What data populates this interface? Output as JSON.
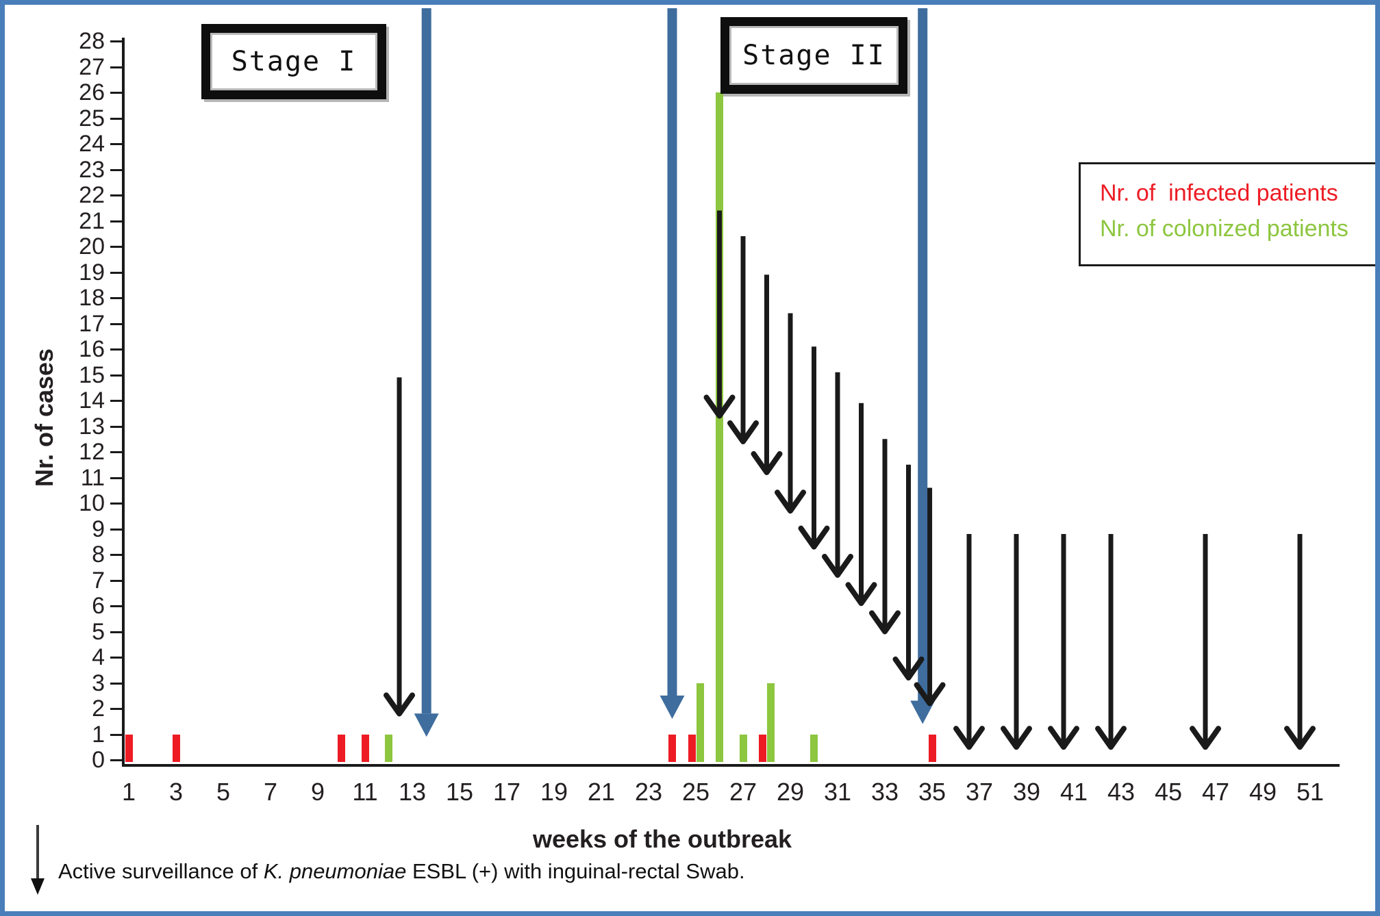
{
  "figure": {
    "y_axis_title": "Nr. of cases",
    "x_axis_title": "weeks of the outbreak",
    "y_ticks": [
      0,
      1,
      2,
      3,
      4,
      5,
      6,
      7,
      8,
      9,
      10,
      11,
      12,
      13,
      14,
      15,
      16,
      17,
      18,
      19,
      20,
      21,
      22,
      23,
      24,
      25,
      26,
      27,
      28
    ],
    "x_ticks": [
      1,
      3,
      5,
      7,
      9,
      11,
      13,
      15,
      17,
      19,
      21,
      23,
      25,
      27,
      29,
      31,
      33,
      35,
      37,
      39,
      41,
      43,
      45,
      47,
      49,
      51
    ]
  },
  "stage_labels": {
    "stage1": "Stage I",
    "stage2": "Stage II"
  },
  "legend": {
    "items": [
      {
        "label": "Nr. of  infected patients",
        "color": "#ED1C24"
      },
      {
        "label": "Nr. of colonized patients",
        "color": "#8DC63F"
      }
    ]
  },
  "footnote": {
    "prefix": "Active surveillance of ",
    "italic": "K. pneumoniae",
    "suffix": " ESBL (+) with inguinal-rectal Swab."
  },
  "colors": {
    "infected": "#ED1C24",
    "colonized": "#8DC63F",
    "blue_arrow": "#3E6D9E",
    "frame": "#4A7EBB",
    "black_arrow": "#1a1a1a"
  },
  "chart_data": {
    "type": "bar",
    "title": "",
    "xlabel": "weeks of the outbreak",
    "ylabel": "Nr. of cases",
    "xlim": [
      0,
      52
    ],
    "ylim": [
      0,
      28
    ],
    "grid": false,
    "legend_position": "upper right",
    "series": [
      {
        "name": "Nr. of infected patients",
        "color": "#ED1C24",
        "points": [
          {
            "week": 1,
            "cases": 1
          },
          {
            "week": 3,
            "cases": 1
          },
          {
            "week": 10,
            "cases": 1
          },
          {
            "week": 11,
            "cases": 1
          },
          {
            "week": 24,
            "cases": 1
          },
          {
            "week": 25,
            "cases": 1
          },
          {
            "week": 28,
            "cases": 1
          },
          {
            "week": 35,
            "cases": 1
          }
        ]
      },
      {
        "name": "Nr. of colonized patients",
        "color": "#8DC63F",
        "points": [
          {
            "week": 12,
            "cases": 1
          },
          {
            "week": 25,
            "cases": 3
          },
          {
            "week": 26,
            "cases": 26
          },
          {
            "week": 27,
            "cases": 1
          },
          {
            "week": 28,
            "cases": 3
          },
          {
            "week": 30,
            "cases": 1
          }
        ]
      }
    ],
    "stage_divider_arrows_blue": [
      {
        "week": 13.6,
        "tip_value": 0.9
      },
      {
        "week": 24.0,
        "tip_value": 1.6
      },
      {
        "week": 34.6,
        "tip_value": 1.4
      }
    ],
    "surveillance_arrows_black": [
      {
        "week": 12.45,
        "from_value": 14.9,
        "tip_value": 1.8
      },
      {
        "week": 26.0,
        "from_value": 21.4,
        "tip_value": 13.4
      },
      {
        "week": 27.0,
        "from_value": 20.4,
        "tip_value": 12.4
      },
      {
        "week": 28.0,
        "from_value": 18.9,
        "tip_value": 11.2
      },
      {
        "week": 29.0,
        "from_value": 17.4,
        "tip_value": 9.7
      },
      {
        "week": 30.0,
        "from_value": 16.1,
        "tip_value": 8.3
      },
      {
        "week": 31.0,
        "from_value": 15.1,
        "tip_value": 7.2
      },
      {
        "week": 32.0,
        "from_value": 13.9,
        "tip_value": 6.1
      },
      {
        "week": 33.0,
        "from_value": 12.5,
        "tip_value": 5.0
      },
      {
        "week": 34.0,
        "from_value": 11.5,
        "tip_value": 3.2
      },
      {
        "week": 34.9,
        "from_value": 10.6,
        "tip_value": 2.2
      },
      {
        "week": 37,
        "from_value": 8.8,
        "tip_value": 0.5,
        "post_stage": true
      },
      {
        "week": 39,
        "from_value": 8.8,
        "tip_value": 0.5,
        "post_stage": true
      },
      {
        "week": 41,
        "from_value": 8.8,
        "tip_value": 0.5,
        "post_stage": true
      },
      {
        "week": 43,
        "from_value": 8.8,
        "tip_value": 0.5,
        "post_stage": true
      },
      {
        "week": 47,
        "from_value": 8.8,
        "tip_value": 0.5,
        "post_stage": true
      },
      {
        "week": 51,
        "from_value": 8.8,
        "tip_value": 0.5,
        "post_stage": true
      }
    ]
  }
}
